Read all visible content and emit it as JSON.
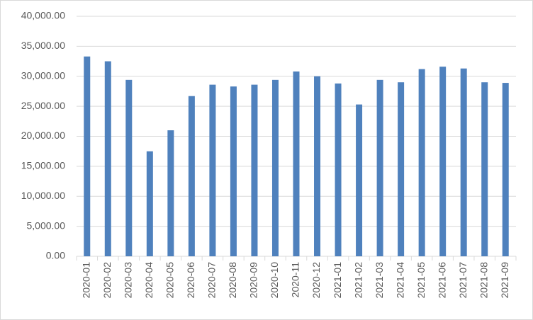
{
  "chart_data": {
    "type": "bar",
    "categories": [
      "2020-01",
      "2020-02",
      "2020-03",
      "2020-04",
      "2020-05",
      "2020-06",
      "2020-07",
      "2020-08",
      "2020-09",
      "2020-10",
      "2020-11",
      "2020-12",
      "2021-01",
      "2021-02",
      "2021-03",
      "2021-04",
      "2021-05",
      "2021-06",
      "2021-07",
      "2021-08",
      "2021-09"
    ],
    "values": [
      33300,
      32500,
      29400,
      17500,
      21000,
      26700,
      28600,
      28300,
      28600,
      29400,
      30800,
      30000,
      28800,
      25300,
      29400,
      29000,
      31200,
      31600,
      31300,
      29000,
      28900
    ],
    "color": "#4f81bd",
    "ylim": [
      0,
      40000
    ],
    "yticks": [
      {
        "value": 0,
        "label": "0.00"
      },
      {
        "value": 5000,
        "label": "5,000.00"
      },
      {
        "value": 10000,
        "label": "10,000.00"
      },
      {
        "value": 15000,
        "label": "15,000.00"
      },
      {
        "value": 20000,
        "label": "20,000.00"
      },
      {
        "value": 25000,
        "label": "25,000.00"
      },
      {
        "value": 30000,
        "label": "30,000.00"
      },
      {
        "value": 35000,
        "label": "35,000.00"
      },
      {
        "value": 40000,
        "label": "40,000.00"
      }
    ],
    "grid": true
  }
}
